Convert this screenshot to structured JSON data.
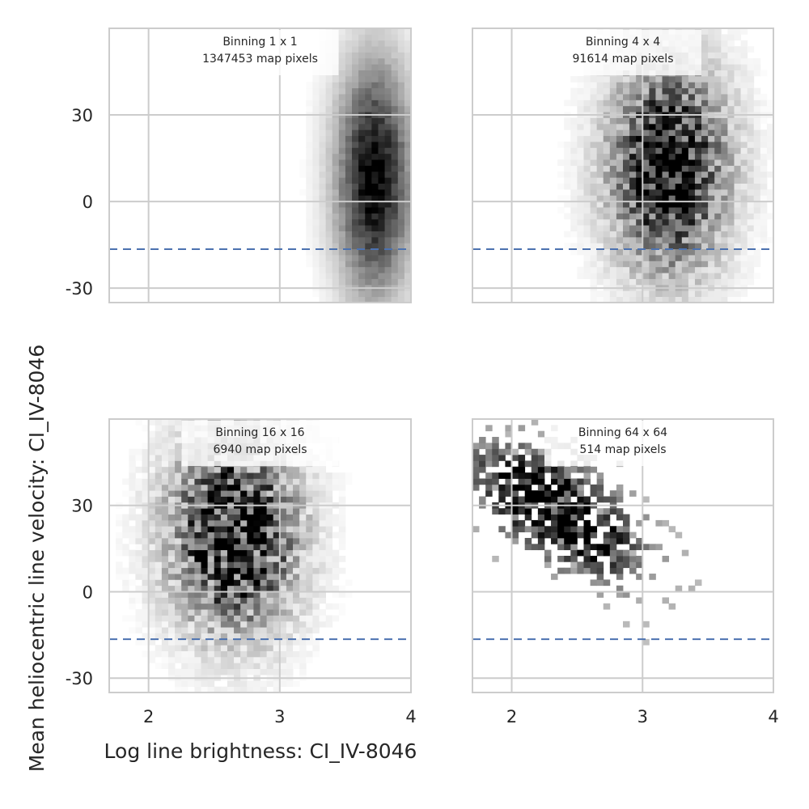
{
  "chart_data": {
    "type": "heatmap",
    "xlabel": "Log line brightness: CI_IV-8046",
    "ylabel": "Mean heliocentric line velocity: CI_IV-8046",
    "xlim": [
      1.7,
      4.0
    ],
    "ylim": [
      -35,
      60
    ],
    "x_ticks": [
      "2",
      "3",
      "4"
    ],
    "y_ticks": [
      "30",
      "0",
      "-30"
    ],
    "x_tick_values": [
      2,
      3,
      4
    ],
    "y_tick_values": [
      30,
      0,
      -30
    ],
    "grid": true,
    "colormap": "gray_r",
    "reference_line": {
      "y": -16.5,
      "style": "dashed",
      "color": "#4c72b0"
    },
    "panels": [
      {
        "id": "binning-1",
        "label_line1": "Binning 1 x 1",
        "label_line2": "1347453 map pixels",
        "x_center": 3.72,
        "x_sigma": 0.2,
        "y_center": 8,
        "y_sigma": 28,
        "slope": 0,
        "noise": 0.12,
        "sparse": false,
        "y_axis_labels": true,
        "x_axis_labels": false
      },
      {
        "id": "binning-4",
        "label_line1": "Binning 4 x 4",
        "label_line2": "91614 map pixels",
        "x_center": 3.2,
        "x_sigma": 0.3,
        "y_center": 12,
        "y_sigma": 24,
        "slope": 0,
        "noise": 0.55,
        "sparse": false,
        "y_axis_labels": false,
        "x_axis_labels": false
      },
      {
        "id": "binning-16",
        "label_line1": "Binning 16 x 16",
        "label_line2": "6940 map pixels",
        "x_center": 2.65,
        "x_sigma": 0.32,
        "y_center": 20,
        "y_sigma": 22,
        "slope": 0,
        "noise": 0.7,
        "sparse": false,
        "y_axis_labels": true,
        "x_axis_labels": true
      },
      {
        "id": "binning-64",
        "label_line1": "Binning 64 x 64",
        "label_line2": "514 map pixels",
        "x_center": 2.35,
        "x_sigma": 0.4,
        "y_center": 28,
        "y_sigma": 11,
        "slope": -22,
        "noise": 0.9,
        "sparse": true,
        "y_axis_labels": false,
        "x_axis_labels": true
      }
    ]
  }
}
